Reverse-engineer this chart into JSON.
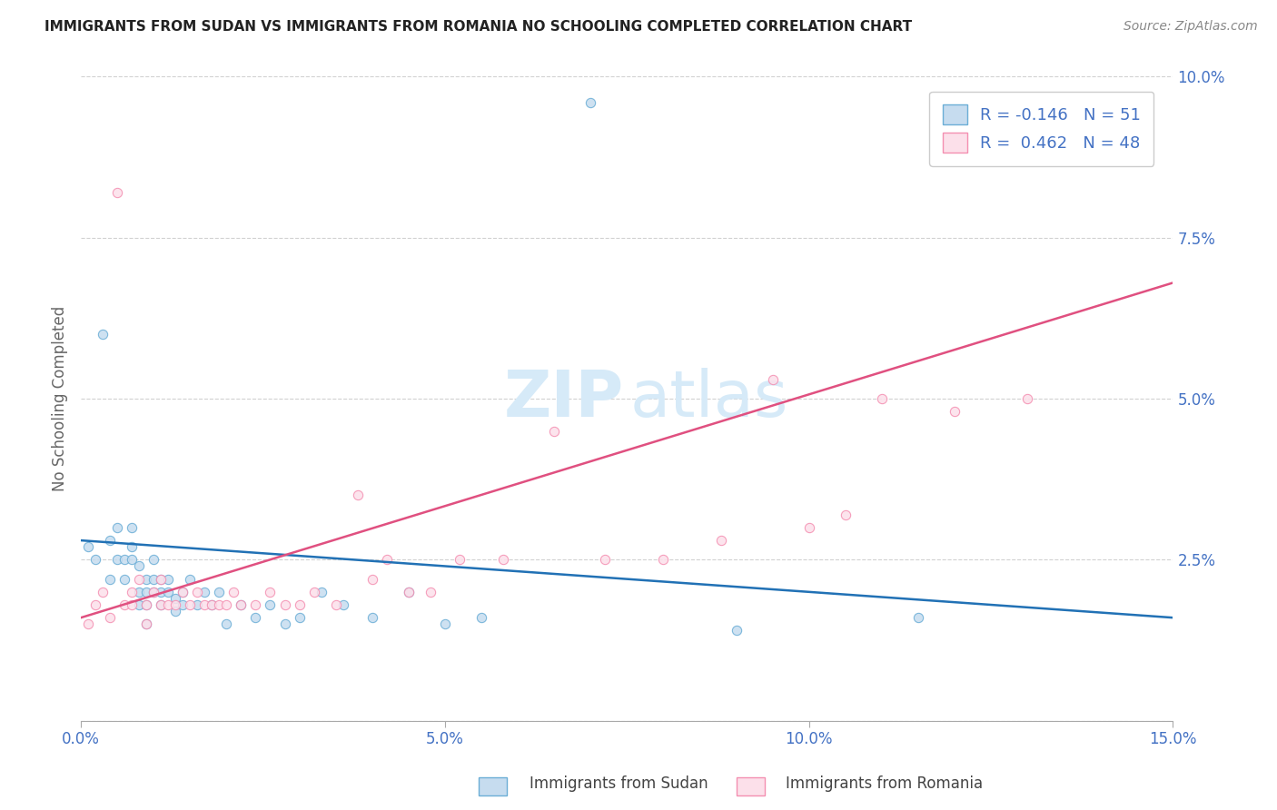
{
  "title": "IMMIGRANTS FROM SUDAN VS IMMIGRANTS FROM ROMANIA NO SCHOOLING COMPLETED CORRELATION CHART",
  "source": "Source: ZipAtlas.com",
  "ylabel": "No Schooling Completed",
  "xlim": [
    0.0,
    0.15
  ],
  "ylim": [
    0.0,
    0.1
  ],
  "xtick_vals": [
    0.0,
    0.05,
    0.1,
    0.15
  ],
  "xtick_labels": [
    "0.0%",
    "5.0%",
    "10.0%",
    "15.0%"
  ],
  "ytick_vals": [
    0.0,
    0.025,
    0.05,
    0.075,
    0.1
  ],
  "ytick_labels": [
    "",
    "2.5%",
    "5.0%",
    "7.5%",
    "10.0%"
  ],
  "sudan_edge_color": "#6baed6",
  "sudan_face_color": "#c6dcef",
  "romania_edge_color": "#f48fb1",
  "romania_face_color": "#fce0ea",
  "trend_sudan_color": "#2171b5",
  "trend_romania_color": "#e05080",
  "R_sudan": -0.146,
  "N_sudan": 51,
  "R_romania": 0.462,
  "N_romania": 48,
  "legend_sudan": "Immigrants from Sudan",
  "legend_romania": "Immigrants from Romania",
  "tick_color": "#4472c4",
  "title_color": "#222222",
  "source_color": "#888888",
  "ylabel_color": "#666666",
  "watermark_color": "#d6eaf8",
  "trend_sudan_start_y": 0.028,
  "trend_sudan_end_y": 0.016,
  "trend_romania_start_y": 0.016,
  "trend_romania_end_y": 0.068,
  "sudan_x": [
    0.001,
    0.002,
    0.003,
    0.004,
    0.004,
    0.005,
    0.005,
    0.006,
    0.006,
    0.007,
    0.007,
    0.007,
    0.008,
    0.008,
    0.008,
    0.009,
    0.009,
    0.009,
    0.009,
    0.01,
    0.01,
    0.01,
    0.011,
    0.011,
    0.011,
    0.012,
    0.012,
    0.013,
    0.013,
    0.014,
    0.014,
    0.015,
    0.016,
    0.017,
    0.018,
    0.019,
    0.02,
    0.022,
    0.024,
    0.026,
    0.028,
    0.03,
    0.033,
    0.036,
    0.04,
    0.045,
    0.05,
    0.055,
    0.07,
    0.09,
    0.115
  ],
  "sudan_y": [
    0.027,
    0.025,
    0.06,
    0.022,
    0.028,
    0.025,
    0.03,
    0.022,
    0.025,
    0.025,
    0.027,
    0.03,
    0.018,
    0.02,
    0.024,
    0.015,
    0.018,
    0.02,
    0.022,
    0.02,
    0.022,
    0.025,
    0.018,
    0.02,
    0.022,
    0.02,
    0.022,
    0.017,
    0.019,
    0.018,
    0.02,
    0.022,
    0.018,
    0.02,
    0.018,
    0.02,
    0.015,
    0.018,
    0.016,
    0.018,
    0.015,
    0.016,
    0.02,
    0.018,
    0.016,
    0.02,
    0.015,
    0.016,
    0.096,
    0.014,
    0.016
  ],
  "romania_x": [
    0.001,
    0.002,
    0.003,
    0.004,
    0.005,
    0.006,
    0.007,
    0.007,
    0.008,
    0.009,
    0.009,
    0.01,
    0.011,
    0.011,
    0.012,
    0.013,
    0.014,
    0.015,
    0.016,
    0.017,
    0.018,
    0.019,
    0.02,
    0.021,
    0.022,
    0.024,
    0.026,
    0.028,
    0.03,
    0.032,
    0.035,
    0.038,
    0.04,
    0.042,
    0.045,
    0.048,
    0.052,
    0.058,
    0.065,
    0.072,
    0.08,
    0.088,
    0.095,
    0.1,
    0.105,
    0.11,
    0.12,
    0.13
  ],
  "romania_y": [
    0.015,
    0.018,
    0.02,
    0.016,
    0.082,
    0.018,
    0.02,
    0.018,
    0.022,
    0.015,
    0.018,
    0.02,
    0.018,
    0.022,
    0.018,
    0.018,
    0.02,
    0.018,
    0.02,
    0.018,
    0.018,
    0.018,
    0.018,
    0.02,
    0.018,
    0.018,
    0.02,
    0.018,
    0.018,
    0.02,
    0.018,
    0.035,
    0.022,
    0.025,
    0.02,
    0.02,
    0.025,
    0.025,
    0.045,
    0.025,
    0.025,
    0.028,
    0.053,
    0.03,
    0.032,
    0.05,
    0.048,
    0.05
  ]
}
